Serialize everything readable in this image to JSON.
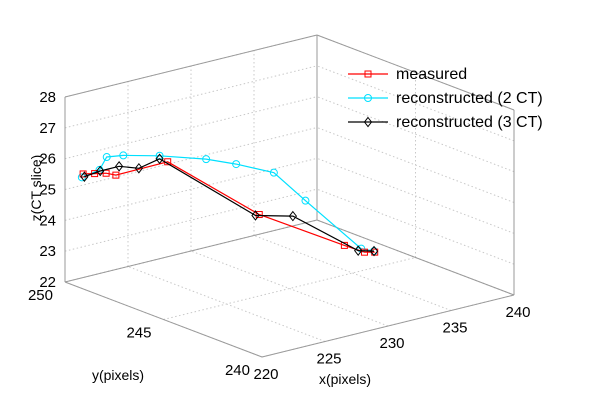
{
  "chart_data": {
    "type": "line",
    "projection": "3d",
    "title": "",
    "xlabel": "x(pixels)",
    "ylabel": "y(pixels)",
    "zlabel": "z(CT slice)",
    "xlim": [
      220,
      240
    ],
    "ylim": [
      240,
      250
    ],
    "zlim": [
      22,
      28
    ],
    "x_ticks": [
      220,
      225,
      230,
      235,
      240
    ],
    "y_ticks": [
      240,
      245,
      250
    ],
    "z_ticks": [
      22,
      23,
      24,
      25,
      26,
      27,
      28
    ],
    "grid": true,
    "legend_position": "top-right",
    "series": [
      {
        "name": "measured",
        "color": "#ff0000",
        "marker": "square",
        "points": [
          [
            220.5,
            249.4,
            25.6
          ],
          [
            221.1,
            249.2,
            25.6
          ],
          [
            221.7,
            249.0,
            25.6
          ],
          [
            223.1,
            249.4,
            25.3
          ],
          [
            226.9,
            249.2,
            25.4
          ],
          [
            230.1,
            246.6,
            24.0
          ],
          [
            234.2,
            244.9,
            23.0
          ],
          [
            234.7,
            244.2,
            22.9
          ],
          [
            235.2,
            244.0,
            22.9
          ]
        ]
      },
      {
        "name": "reconstructed (2 CT)",
        "color": "#00e0ff",
        "marker": "circle",
        "points": [
          [
            220.4,
            249.4,
            25.5
          ],
          [
            221.8,
            249.4,
            25.6
          ],
          [
            223.0,
            249.8,
            25.8
          ],
          [
            224.0,
            249.6,
            25.8
          ],
          [
            226.1,
            249.1,
            25.7
          ],
          [
            228.7,
            248.4,
            25.5
          ],
          [
            230.3,
            247.9,
            25.3
          ],
          [
            232.2,
            247.2,
            25.0
          ],
          [
            233.3,
            246.3,
            24.2
          ],
          [
            234.6,
            244.3,
            23.0
          ],
          [
            235.3,
            244.1,
            22.9
          ]
        ]
      },
      {
        "name": "reconstructed (3 CT)",
        "color": "#000000",
        "marker": "diamond",
        "points": [
          [
            220.6,
            249.4,
            25.5
          ],
          [
            221.7,
            249.3,
            25.6
          ],
          [
            223.2,
            249.3,
            25.6
          ],
          [
            224.3,
            249.0,
            25.5
          ],
          [
            226.1,
            249.1,
            25.6
          ],
          [
            229.8,
            246.6,
            24.0
          ],
          [
            232.3,
            246.3,
            23.8
          ],
          [
            234.2,
            244.2,
            23.0
          ],
          [
            235.3,
            244.1,
            22.9
          ]
        ]
      }
    ]
  }
}
